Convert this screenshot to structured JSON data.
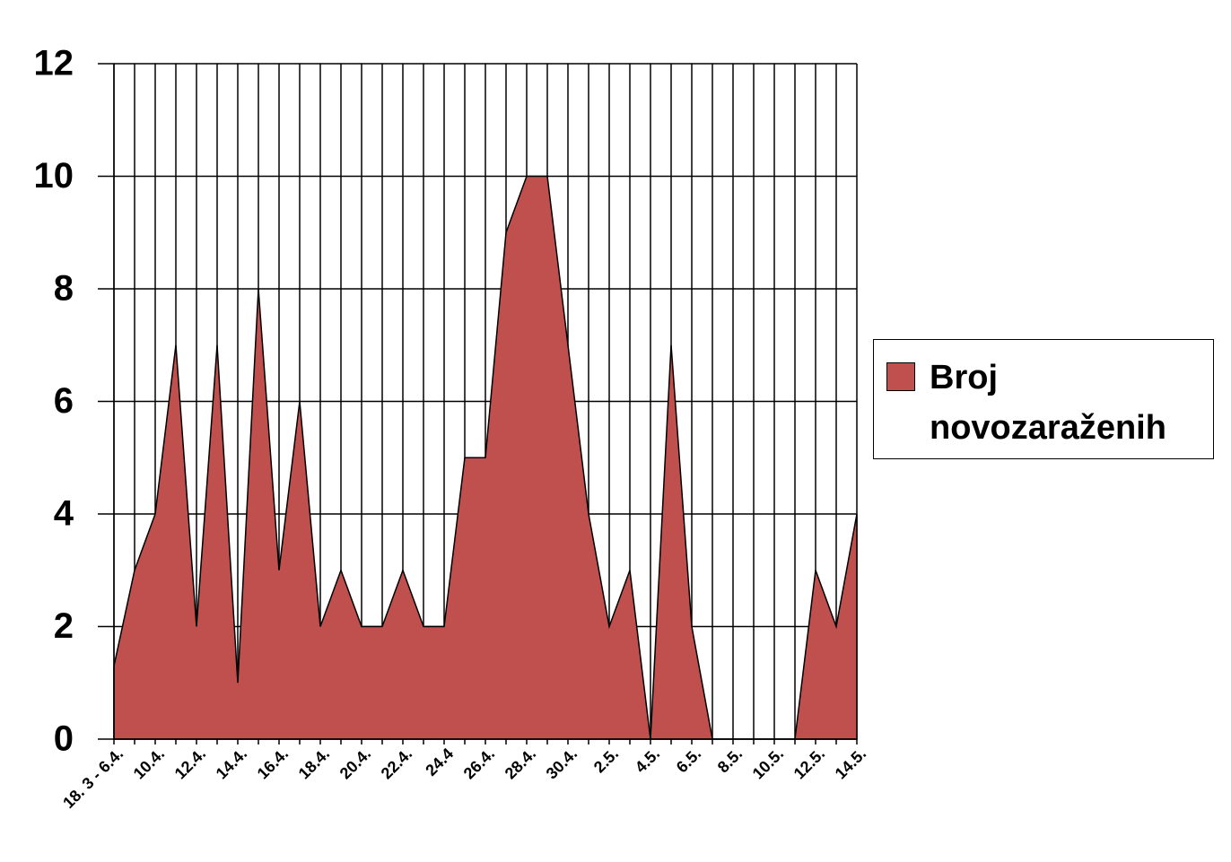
{
  "chart_data": {
    "type": "area",
    "categories": [
      "18. 3 - 6.4.",
      null,
      "10.4.",
      null,
      "12.4.",
      null,
      "14.4.",
      null,
      "16.4.",
      null,
      "18.4.",
      null,
      "20.4.",
      null,
      "22.4.",
      null,
      "24.4",
      null,
      "26.4.",
      null,
      "28.4.",
      null,
      "30.4.",
      null,
      "2.5.",
      null,
      "4.5.",
      null,
      "6.5.",
      null,
      "8.5.",
      null,
      "10.5.",
      null,
      "12.5.",
      null,
      "14.5."
    ],
    "series": [
      {
        "name": "Broj novozaraženih",
        "color": "#c0504d",
        "values": [
          1.3,
          3,
          4,
          7,
          2,
          7,
          1,
          8,
          3,
          6,
          2,
          3,
          2,
          2,
          3,
          2,
          2,
          5,
          5,
          9,
          10,
          10,
          7,
          4,
          2,
          3,
          0,
          7,
          2,
          0,
          0,
          0,
          0,
          0,
          3,
          2,
          4
        ]
      }
    ],
    "ylim": [
      0,
      12
    ],
    "yticks": [
      0,
      2,
      4,
      6,
      8,
      10,
      12
    ],
    "grid": true,
    "legend": "right"
  }
}
